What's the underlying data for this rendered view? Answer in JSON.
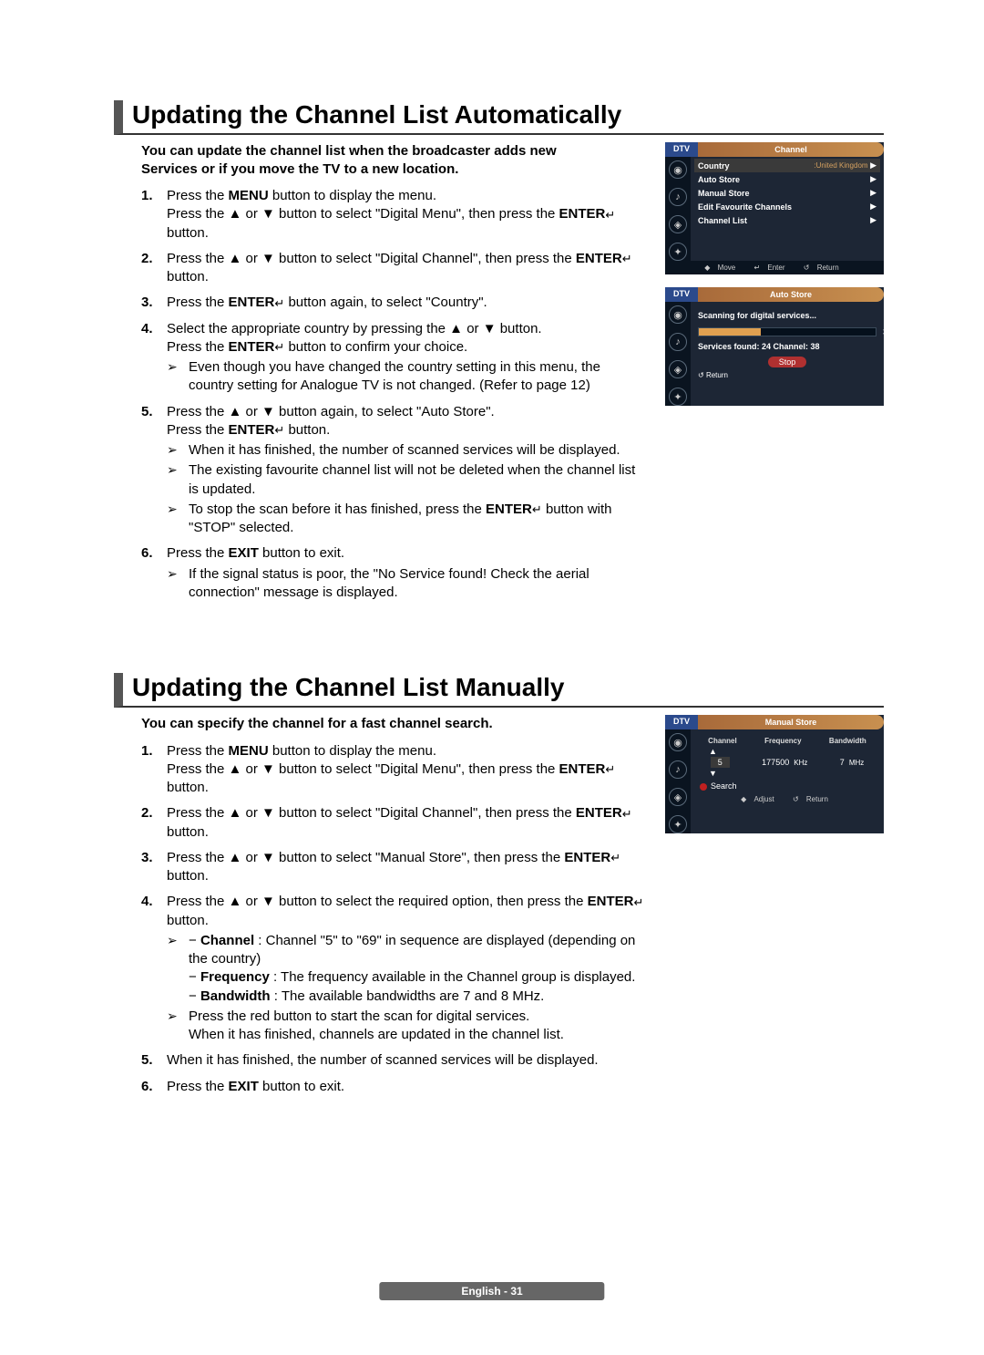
{
  "section1": {
    "title": "Updating the Channel List Automatically",
    "intro": "You can update the channel list when the broadcaster adds new Services or if you move the TV to a new location.",
    "steps": [
      {
        "n": "1.",
        "text": "Press the <b>MENU</b> button to display the menu.<br>Press the ▲ or ▼ button to select \"Digital Menu\", then press the <b>ENTER</b><span class='enter-icon'>↵</span> button."
      },
      {
        "n": "2.",
        "text": "Press the ▲ or ▼ button to select \"Digital Channel\", then press the <b>ENTER</b><span class='enter-icon'>↵</span> button."
      },
      {
        "n": "3.",
        "text": "Press the <b>ENTER</b><span class='enter-icon'>↵</span> button again, to select \"Country\"."
      },
      {
        "n": "4.",
        "text": "Select the appropriate country by pressing the ▲ or ▼ button.<br>Press the <b>ENTER</b><span class='enter-icon'>↵</span> button to confirm your choice.",
        "notes": [
          "Even though you have changed the country setting in this menu, the country setting for Analogue TV is not changed. (Refer to page 12)"
        ]
      },
      {
        "n": "5.",
        "text": "Press the ▲ or ▼ button again, to select \"Auto Store\".<br>Press the <b>ENTER</b><span class='enter-icon'>↵</span> button.",
        "notes": [
          "When it has finished, the number of scanned services will be displayed.",
          "The existing favourite channel list will not be deleted when the channel list is updated.",
          "To stop the scan before it has finished, press the <b>ENTER</b><span class='enter-icon'>↵</span> button with \"STOP\" selected."
        ],
        "notesFull": true
      },
      {
        "n": "6.",
        "text": "Press the <b>EXIT</b> button to exit.",
        "notes": [
          "If the signal status is poor, the \"No Service found! Check the aerial connection\" message is displayed."
        ]
      }
    ]
  },
  "section2": {
    "title": "Updating the Channel List Manually",
    "intro": "You can specify the channel for a fast channel search.",
    "steps": [
      {
        "n": "1.",
        "text": "Press the <b>MENU</b> button to display the menu.<br>Press the ▲ or ▼ button to select \"Digital Menu\", then press the <b>ENTER</b><span class='enter-icon'>↵</span> button."
      },
      {
        "n": "2.",
        "text": "Press the ▲ or ▼ button to select \"Digital Channel\", then press the <b>ENTER</b><span class='enter-icon'>↵</span> button."
      },
      {
        "n": "3.",
        "text": "Press the ▲ or ▼ button to select \"Manual Store\", then press the <b>ENTER</b><span class='enter-icon'>↵</span> button."
      },
      {
        "n": "4.",
        "text": "Press the ▲ or ▼ button to select the required option, then press the <b>ENTER</b><span class='enter-icon'>↵</span> button.",
        "notes": [
          "− <b>Channel</b> : Channel \"5\" to \"69\" in sequence are displayed (depending on the country)<br>− <b>Frequency</b> : The frequency available in the Channel group is displayed.<br>− <b>Bandwidth</b> : The available bandwidths are 7 and 8 MHz.",
          "Press the red button to start the scan for digital services.<br>When it has finished, channels are updated in the channel list."
        ]
      },
      {
        "n": "5.",
        "text": "When it has finished, the number of scanned services will be displayed."
      },
      {
        "n": "6.",
        "text": "Press the <b>EXIT</b> button to exit."
      }
    ]
  },
  "osd1": {
    "tag": "DTV",
    "title": "Channel",
    "rows": [
      {
        "label": "Country",
        "value": ":United Kingdom",
        "hl": true
      },
      {
        "label": "Auto Store"
      },
      {
        "label": "Manual Store"
      },
      {
        "label": "Edit Favourite Channels"
      },
      {
        "label": "Channel List"
      }
    ],
    "footer": {
      "move": "Move",
      "enter": "Enter",
      "return": "Return"
    }
  },
  "osd2": {
    "tag": "DTV",
    "title": "Auto Store",
    "scanning": "Scanning for digital services...",
    "pct": "35%",
    "services": "Services found: 24    Channel: 38",
    "stop": "Stop",
    "return": "Return"
  },
  "osd3": {
    "tag": "DTV",
    "title": "Manual Store",
    "cols": [
      "Channel",
      "Frequency",
      "Bandwidth"
    ],
    "vals": {
      "ch": "5",
      "freq": "177500",
      "freqUnit": "KHz",
      "bw": "7",
      "bwUnit": "MHz"
    },
    "search": "Search",
    "footer": {
      "adjust": "Adjust",
      "return": "Return"
    }
  },
  "footer": "English - 31"
}
